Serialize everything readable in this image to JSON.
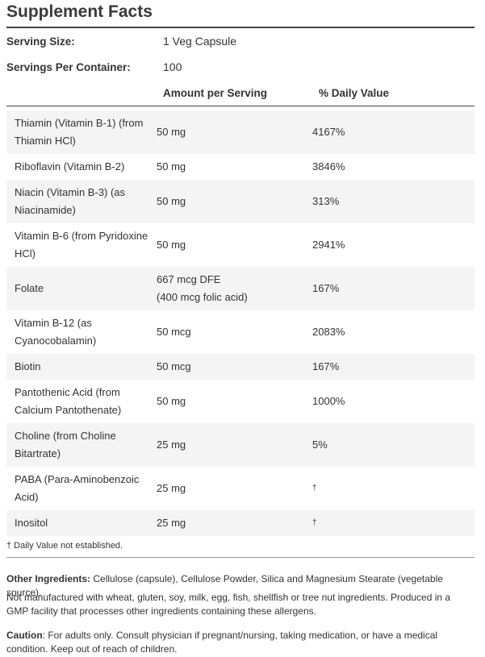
{
  "title": "Supplement Facts",
  "serving_size": {
    "label": "Serving Size:",
    "value": "1 Veg Capsule"
  },
  "servings_per_container": {
    "label": "Servings Per Container:",
    "value": "100"
  },
  "headers": {
    "amount": "Amount per Serving",
    "daily_value": "% Daily Value"
  },
  "rows": [
    {
      "name": "Thiamin (Vitamin B-1) (from Thiamin HCl)",
      "amount": "50 mg",
      "daily_value": "4167%"
    },
    {
      "name": "Riboflavin (Vitamin B-2)",
      "amount": "50 mg",
      "daily_value": "3846%"
    },
    {
      "name": "Niacin (Vitamin B-3) (as Niacinamide)",
      "amount": "50 mg",
      "daily_value": "313%"
    },
    {
      "name": "Vitamin B-6 (from Pyridoxine HCl)",
      "amount": "50 mg",
      "daily_value": "2941%"
    },
    {
      "name": "Folate",
      "amount": "667 mcg DFE",
      "amount_note": "(400 mcg folic acid)",
      "daily_value": "167%"
    },
    {
      "name": "Vitamin B-12 (as Cyanocobalamin)",
      "amount": "50 mcg",
      "daily_value": "2083%"
    },
    {
      "name": "Biotin",
      "amount": "50 mcg",
      "daily_value": "167%"
    },
    {
      "name": "Pantothenic Acid (from Calcium Pantothenate)",
      "amount": "50 mg",
      "daily_value": "1000%"
    },
    {
      "name": "Choline (from Choline Bitartrate)",
      "amount": "25 mg",
      "daily_value": "5%"
    },
    {
      "name": "PABA (Para-Aminobenzoic Acid)",
      "amount": "25 mg",
      "daily_value": "†"
    },
    {
      "name": "Inositol",
      "amount": "25 mg",
      "daily_value": "†"
    }
  ],
  "footnote": "† Daily Value not established.",
  "other_ingredients": {
    "label": "Other Ingredients:",
    "text": "Cellulose (capsule), Cellulose Powder, Silica and Magnesium Stearate (vegetable source)."
  },
  "allergen_note": "Not manufactured with wheat, gluten, soy, milk, egg, fish, shellfish or tree nut ingredients. Produced in a GMP facility that processes other ingredients containing these allergens.",
  "caution": {
    "label": "Caution",
    "text": ": For adults only. Consult physician if pregnant/nursing, taking medication, or have a medical condition. Keep out of reach of children."
  }
}
